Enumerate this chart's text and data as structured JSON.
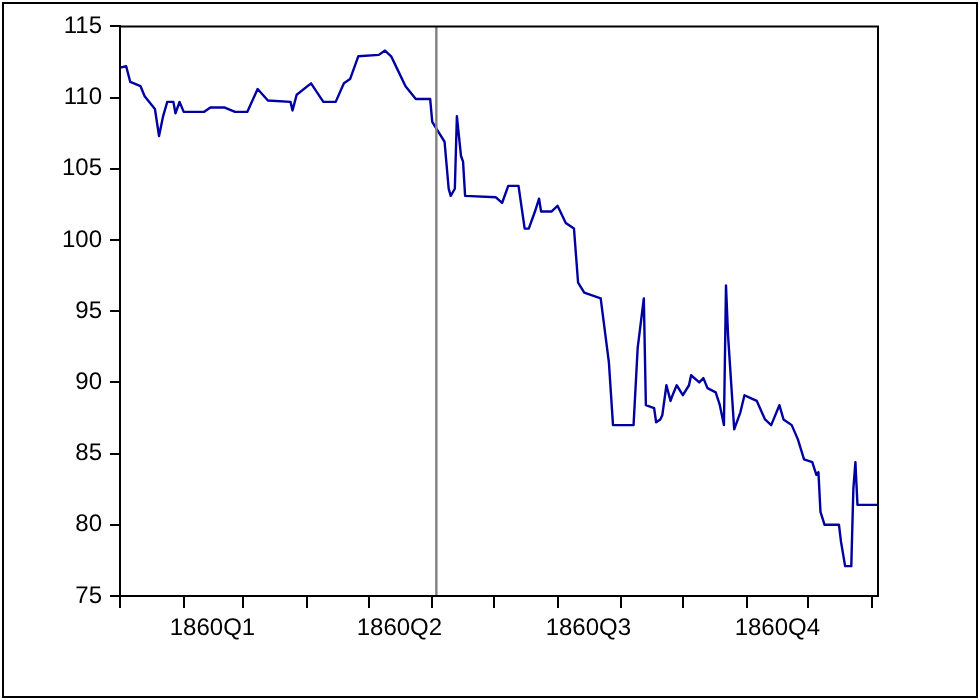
{
  "chart_data": {
    "type": "line",
    "x": [
      "1860-01-01",
      "1860-01-04",
      "1860-01-06",
      "1860-01-11",
      "1860-01-13",
      "1860-01-18",
      "1860-01-20",
      "1860-01-22",
      "1860-01-24",
      "1860-01-27",
      "1860-01-28",
      "1860-01-30",
      "1860-02-01",
      "1860-02-11",
      "1860-02-14",
      "1860-02-21",
      "1860-02-26",
      "1860-03-03",
      "1860-03-08",
      "1860-03-13",
      "1860-03-24",
      "1860-03-25",
      "1860-03-27",
      "1860-04-03",
      "1860-04-09",
      "1860-04-15",
      "1860-04-19",
      "1860-04-22",
      "1860-04-26",
      "1860-05-06",
      "1860-05-09",
      "1860-05-12",
      "1860-05-15",
      "1860-05-19",
      "1860-05-24",
      "1860-05-31",
      "1860-06-01",
      "1860-06-04",
      "1860-06-07",
      "1860-06-09",
      "1860-06-10",
      "1860-06-12",
      "1860-06-13",
      "1860-06-15",
      "1860-06-16",
      "1860-06-17",
      "1860-07-02",
      "1860-07-05",
      "1860-07-08",
      "1860-07-13",
      "1860-07-16",
      "1860-07-18",
      "1860-07-21",
      "1860-07-23",
      "1860-07-24",
      "1860-07-29",
      "1860-08-01",
      "1860-08-05",
      "1860-08-09",
      "1860-08-11",
      "1860-08-14",
      "1860-08-22",
      "1860-08-26",
      "1860-08-28",
      "1860-09-07",
      "1860-09-09",
      "1860-09-12",
      "1860-09-13",
      "1860-09-17",
      "1860-09-18",
      "1860-09-20",
      "1860-09-21",
      "1860-09-23",
      "1860-09-25",
      "1860-09-26",
      "1860-09-28",
      "1860-10-01",
      "1860-10-04",
      "1860-10-05",
      "1860-10-09",
      "1860-10-11",
      "1860-10-13",
      "1860-10-17",
      "1860-10-19",
      "1860-10-21",
      "1860-10-22",
      "1860-10-23",
      "1860-10-26",
      "1860-10-29",
      "1860-10-31",
      "1860-11-03",
      "1860-11-06",
      "1860-11-10",
      "1860-11-13",
      "1860-11-17",
      "1860-11-19",
      "1860-11-23",
      "1860-11-26",
      "1860-11-29",
      "1860-12-03",
      "1860-12-05",
      "1860-12-06",
      "1860-12-07",
      "1860-12-09",
      "1860-12-16",
      "1860-12-17",
      "1860-12-19",
      "1860-12-22",
      "1860-12-23",
      "1860-12-24",
      "1860-12-25",
      "1861-01-04"
    ],
    "series": [
      {
        "color": "#0000a0",
        "values": [
          112.1,
          112.2,
          111.1,
          110.8,
          110.1,
          109.2,
          107.3,
          108.7,
          109.7,
          109.7,
          108.9,
          109.7,
          109.0,
          109.0,
          109.3,
          109.3,
          109.0,
          109.0,
          110.6,
          109.8,
          109.7,
          109.1,
          110.2,
          111.0,
          109.7,
          109.7,
          111.0,
          111.3,
          112.9,
          113.0,
          113.3,
          112.9,
          112.0,
          110.8,
          109.9,
          109.9,
          108.3,
          107.6,
          106.9,
          103.6,
          103.1,
          103.6,
          108.7,
          105.9,
          105.5,
          103.1,
          103.0,
          102.6,
          103.8,
          103.8,
          100.8,
          100.8,
          102.0,
          102.9,
          102.0,
          102.0,
          102.4,
          101.2,
          100.8,
          97.0,
          96.3,
          95.9,
          91.4,
          87.0,
          87.0,
          92.4,
          95.9,
          88.4,
          88.2,
          87.2,
          87.4,
          87.7,
          89.8,
          88.7,
          89.1,
          89.8,
          89.1,
          89.8,
          90.5,
          90.0,
          90.3,
          89.6,
          89.3,
          88.4,
          87.0,
          96.8,
          93.3,
          86.7,
          87.9,
          89.1,
          88.9,
          88.7,
          87.4,
          87.0,
          88.4,
          87.4,
          87.0,
          86.0,
          84.6,
          84.4,
          83.5,
          83.7,
          80.9,
          80.0,
          80.0,
          78.8,
          77.1,
          77.1,
          82.5,
          84.4,
          81.4,
          81.4
        ]
      }
    ],
    "xlim": [
      "1860-01-01",
      "1861-01-04"
    ],
    "xticks": [
      {
        "value": "1860-01-01",
        "label": null
      },
      {
        "value": "1860-02-01",
        "label": null
      },
      {
        "value": "1860-02-15",
        "label": "1860Q1"
      },
      {
        "value": "1860-03-01",
        "label": null
      },
      {
        "value": "1860-04-01",
        "label": null
      },
      {
        "value": "1860-05-01",
        "label": null
      },
      {
        "value": "1860-05-16",
        "label": "1860Q2"
      },
      {
        "value": "1860-06-01",
        "label": null
      },
      {
        "value": "1860-07-01",
        "label": null
      },
      {
        "value": "1860-08-01",
        "label": null
      },
      {
        "value": "1860-08-16",
        "label": "1860Q3"
      },
      {
        "value": "1860-09-01",
        "label": null
      },
      {
        "value": "1860-10-01",
        "label": null
      },
      {
        "value": "1860-11-01",
        "label": null
      },
      {
        "value": "1860-11-16",
        "label": "1860Q4"
      },
      {
        "value": "1860-12-01",
        "label": null
      },
      {
        "value": "1861-01-01",
        "label": null
      }
    ],
    "ylim": [
      75,
      115
    ],
    "yticks": [
      75,
      80,
      85,
      90,
      95,
      100,
      105,
      110,
      115
    ],
    "ref_lines": [
      {
        "axis": "x",
        "value": "1860-06-03",
        "color": "#808080"
      }
    ],
    "grid": false,
    "legend": false,
    "marker": "none",
    "line_style": "solid"
  }
}
